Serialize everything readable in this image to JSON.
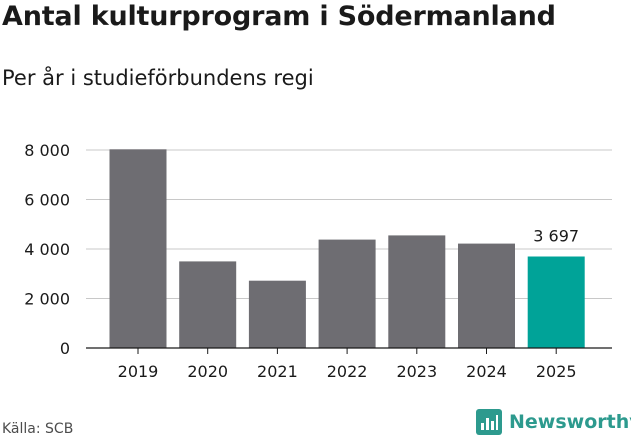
{
  "chart_data": {
    "type": "bar",
    "title": "Antal kulturprogram i Södermanland",
    "subtitle": "Per år i studieförbundens regi",
    "categories": [
      "2019",
      "2020",
      "2021",
      "2022",
      "2023",
      "2024",
      "2025"
    ],
    "values": [
      8030,
      3500,
      2720,
      4380,
      4550,
      4220,
      3697
    ],
    "highlight_index": 6,
    "data_labels": [
      {
        "index": 6,
        "text": "3 697"
      }
    ],
    "ylim": [
      0,
      8000
    ],
    "y_ticks": [
      {
        "value": 0,
        "label": "0"
      },
      {
        "value": 2000,
        "label": "2 000"
      },
      {
        "value": 4000,
        "label": "4 000"
      },
      {
        "value": 6000,
        "label": "6 000"
      },
      {
        "value": 8000,
        "label": "8 000"
      }
    ],
    "grid": true,
    "xlabel": "",
    "ylabel": "",
    "colors": {
      "bar": "#6e6d72",
      "highlight": "#00a398",
      "grid": "#c8c8c8",
      "axis": "#1a1a1a"
    }
  },
  "footer": {
    "source": "Källa: SCB",
    "brand": "Newsworthy",
    "brand_icon": "newsworthy-logo-icon",
    "brand_color": "#2d9a8e"
  }
}
